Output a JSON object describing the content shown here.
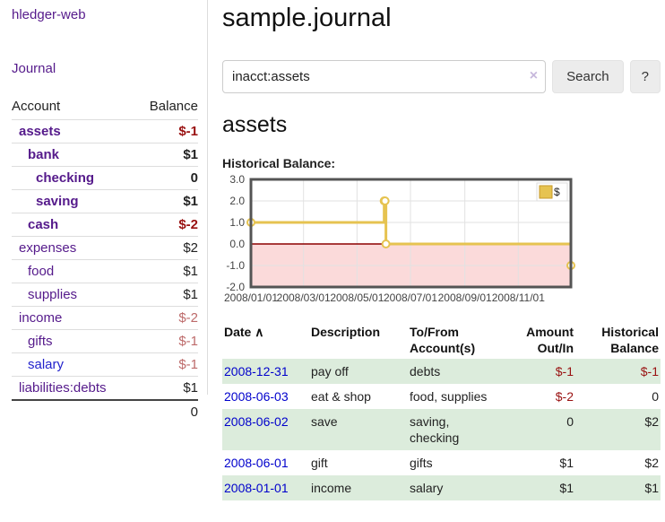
{
  "brand": "hledger-web",
  "sidebar": {
    "journal_link": "Journal",
    "accounts": {
      "col_account": "Account",
      "col_balance": "Balance",
      "rows": [
        {
          "name": "assets",
          "balance": "$-1",
          "level": 1,
          "bold": true,
          "neg": "strong"
        },
        {
          "name": "bank",
          "balance": "$1",
          "level": 2,
          "bold": true
        },
        {
          "name": "checking",
          "balance": "0",
          "level": 3,
          "bold": true
        },
        {
          "name": "saving",
          "balance": "$1",
          "level": 3,
          "bold": true
        },
        {
          "name": "cash",
          "balance": "$-2",
          "level": 2,
          "bold": true,
          "neg": "strong"
        },
        {
          "name": "expenses",
          "balance": "$2",
          "level": 1
        },
        {
          "name": "food",
          "balance": "$1",
          "level": 2
        },
        {
          "name": "supplies",
          "balance": "$1",
          "level": 2
        },
        {
          "name": "income",
          "balance": "$-2",
          "level": 1,
          "neg": "soft"
        },
        {
          "name": "gifts",
          "balance": "$-1",
          "level": 2,
          "neg": "soft"
        },
        {
          "name": "salary",
          "balance": "$-1",
          "level": 2,
          "neg": "soft",
          "link": "blue"
        },
        {
          "name": "liabilities:debts",
          "balance": "$1",
          "level": 1
        }
      ],
      "total": "0"
    }
  },
  "header": {
    "title": "sample.journal"
  },
  "search": {
    "value": "inacct:assets",
    "clear_icon": "×",
    "search_button": "Search",
    "help_button": "?"
  },
  "account_page": {
    "heading": "assets",
    "chart_title": "Historical Balance:"
  },
  "chart_data": {
    "type": "line",
    "step": true,
    "title": "Historical Balance",
    "series": [
      {
        "name": "$",
        "color": "#e6c350",
        "points": [
          [
            "2008-01-01",
            1
          ],
          [
            "2008-06-01",
            2
          ],
          [
            "2008-06-02",
            2
          ],
          [
            "2008-06-03",
            0
          ],
          [
            "2008-12-31",
            -1
          ]
        ]
      }
    ],
    "xlim": [
      "2008-01-01",
      "2008-12-31"
    ],
    "ylim": [
      -2,
      3
    ],
    "yticks": [
      3,
      2,
      1,
      0,
      -1,
      -2
    ],
    "xticks": [
      {
        "label": "2008/01/01",
        "date": "2008-01-01"
      },
      {
        "label": "2008/03/01",
        "date": "2008-03-01"
      },
      {
        "label": "2008/05/01",
        "date": "2008-05-01"
      },
      {
        "label": "2008/07/01",
        "date": "2008-07-01"
      },
      {
        "label": "2008/09/01",
        "date": "2008-09-01"
      },
      {
        "label": "2008/11/01",
        "date": "2008-11-01"
      }
    ],
    "grid": true,
    "legend": {
      "label": "$",
      "position": "top-right"
    },
    "colors": {
      "negative_fill": "#fbdada",
      "zero_line": "#8b0000",
      "grid": "#e2e2e2",
      "border": "#545454",
      "marker_fill": "#ffffff",
      "axis_text": "#444444"
    }
  },
  "register": {
    "headers": {
      "date": "Date",
      "sort_indicator": "∧",
      "description": "Description",
      "accounts": "To/From Account(s)",
      "amount": "Amount Out/In",
      "balance": "Historical Balance"
    },
    "rows": [
      {
        "date": "2008-12-31",
        "description": "pay off",
        "accounts": "debts",
        "amount": "$-1",
        "balance": "$-1",
        "amount_neg": true,
        "balance_neg": true
      },
      {
        "date": "2008-06-03",
        "description": "eat & shop",
        "accounts": "food, supplies",
        "amount": "$-2",
        "balance": "0",
        "amount_neg": true
      },
      {
        "date": "2008-06-02",
        "description": "save",
        "accounts": "saving, checking",
        "amount": "0",
        "balance": "$2"
      },
      {
        "date": "2008-06-01",
        "description": "gift",
        "accounts": "gifts",
        "amount": "$1",
        "balance": "$2"
      },
      {
        "date": "2008-01-01",
        "description": "income",
        "accounts": "salary",
        "amount": "$1",
        "balance": "$1"
      }
    ]
  },
  "colors": {
    "accent_purple": "#551a8b",
    "link_blue": "#2222cc",
    "negative_strong": "#991111",
    "negative_soft": "#bd6a6a",
    "row_stripe_green": "#dcecdc",
    "chart_gold": "#e6c350"
  }
}
